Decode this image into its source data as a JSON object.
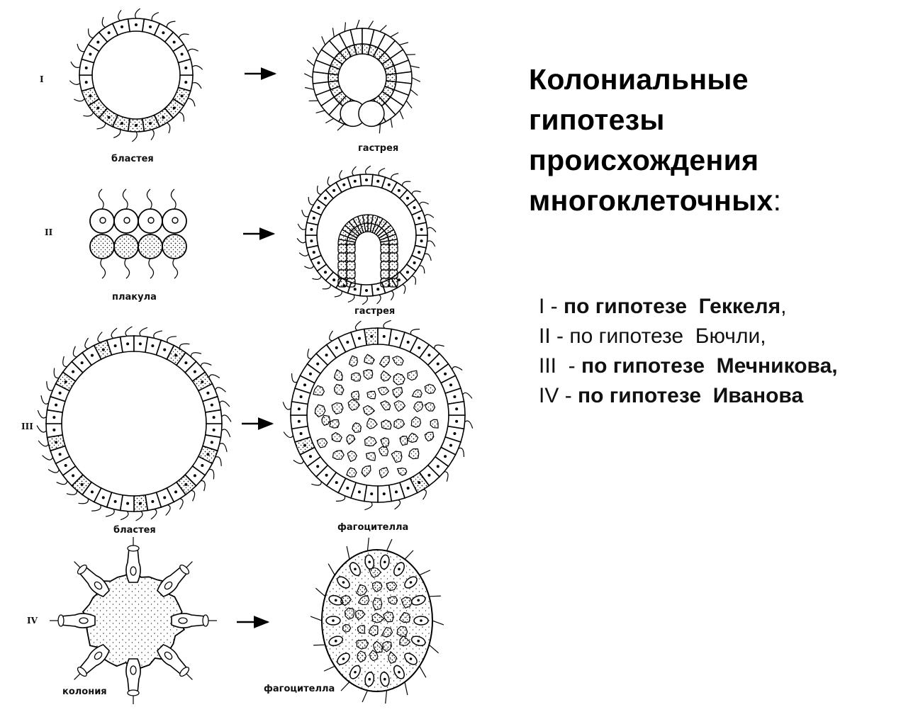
{
  "title": {
    "line1": "Колониальные",
    "line2": "гипотезы",
    "line3": "происхождения",
    "line4": "многоклеточных",
    "colon": ":"
  },
  "hypotheses": [
    {
      "numeral": "I",
      "sep": " - ",
      "text": "по гипотезе  Геккеля",
      "tail": ","
    },
    {
      "numeral": "II",
      "sep": " - ",
      "text": "по гипотезе  Бючли",
      "tail": ","
    },
    {
      "numeral": "III",
      "sep": "  - ",
      "text": "по гипотезе  Мечникова",
      "tail": ","
    },
    {
      "numeral": "IV",
      "sep": " - ",
      "text": "по гипотезе  Иванова",
      "tail": ""
    }
  ],
  "rows": [
    {
      "numeral": "I",
      "left_caption": "бластея",
      "right_caption": "гастрея"
    },
    {
      "numeral": "II",
      "left_caption": "плакула",
      "right_caption": "гастрея"
    },
    {
      "numeral": "III",
      "left_caption": "бластея",
      "right_caption": "фагоцителла"
    },
    {
      "numeral": "IV",
      "left_caption": "колония",
      "right_caption": "фагоцителла"
    }
  ]
}
